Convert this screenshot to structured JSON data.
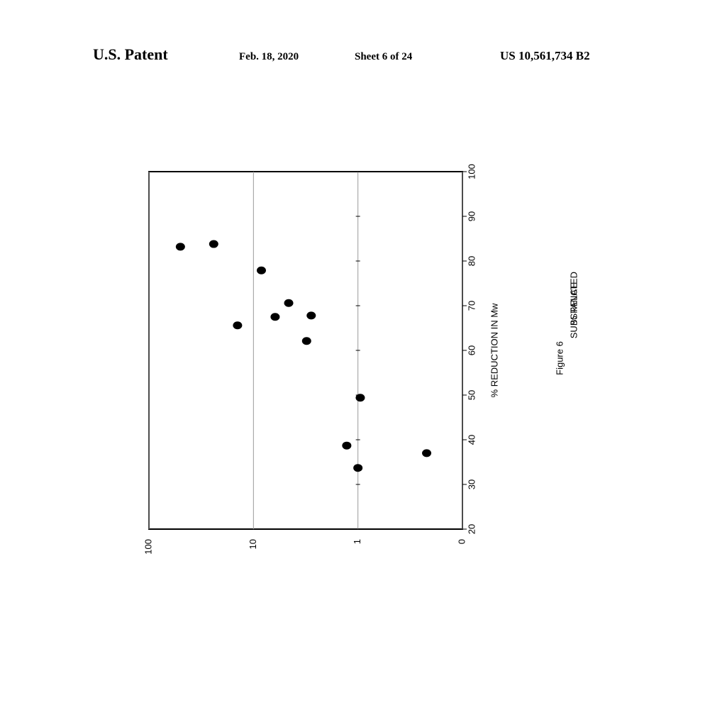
{
  "header": {
    "left": "U.S. Patent",
    "date": "Feb. 18, 2020",
    "sheet": "Sheet 6 of 24",
    "number": "US 10,561,734 B2"
  },
  "chart_data": {
    "type": "scatter",
    "caption": "Figure 6",
    "xlabel": "% REDUCTION IN Mw",
    "ylabel": [
      "% RELATED",
      "SUBSTANCE"
    ],
    "x": [
      83.2,
      83.8,
      77.9,
      70.6,
      67.8,
      67.5,
      65.6,
      62.1,
      49.4,
      38.7,
      33.7,
      37.0
    ],
    "values": [
      50,
      24,
      8.4,
      4.6,
      2.8,
      6.2,
      14.2,
      3.1,
      0.95,
      1.28,
      1.0,
      0.22
    ],
    "color": "#000000",
    "xlim": [
      20,
      100
    ],
    "xticks": [
      20,
      30,
      40,
      50,
      60,
      70,
      80,
      90,
      100
    ],
    "ylim": [
      0.1,
      100
    ],
    "yticks": [
      {
        "value": 0.1,
        "label": "0"
      },
      1,
      10,
      100
    ],
    "ylog": true,
    "grid": true
  }
}
